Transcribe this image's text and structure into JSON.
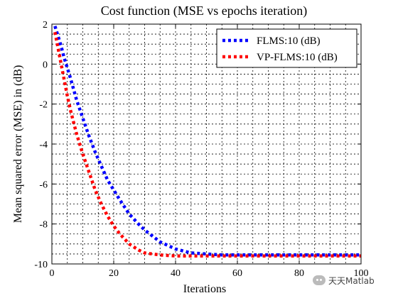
{
  "chart_data": {
    "type": "line",
    "title": "Cost function (MSE vs epochs iteration)",
    "xlabel": "Iterations",
    "ylabel": "Mean squared error (MSE) in (dB)",
    "xlim": [
      0,
      100
    ],
    "ylim": [
      -10,
      2
    ],
    "xticks": [
      "0",
      "20",
      "40",
      "60",
      "80",
      "100"
    ],
    "yticks": [
      "2",
      "0",
      "-2",
      "-4",
      "-6",
      "-8",
      "-10"
    ],
    "grid": true,
    "legend_position": "top-right",
    "series": [
      {
        "name": "FLMS:10 (dB)",
        "color": "#0000ff",
        "x": [
          1,
          2,
          3,
          4,
          5,
          6,
          8,
          10,
          12,
          14,
          16,
          18,
          20,
          22,
          25,
          28,
          30,
          35,
          40,
          45,
          50,
          55,
          60,
          70,
          80,
          90,
          100
        ],
        "y": [
          1.9,
          1.4,
          0.9,
          0.3,
          -0.2,
          -0.7,
          -1.8,
          -2.7,
          -3.6,
          -4.4,
          -5.1,
          -5.8,
          -6.3,
          -6.8,
          -7.5,
          -8.0,
          -8.3,
          -8.9,
          -9.25,
          -9.45,
          -9.5,
          -9.55,
          -9.55,
          -9.55,
          -9.55,
          -9.55,
          -9.55
        ]
      },
      {
        "name": "VP-FLMS:10 (dB)",
        "color": "#ff0000",
        "x": [
          1,
          2,
          3,
          4,
          5,
          6,
          8,
          10,
          12,
          14,
          16,
          18,
          20,
          22,
          25,
          28,
          30,
          35,
          40,
          45,
          50,
          55,
          60,
          70,
          80,
          90,
          100
        ],
        "y": [
          1.6,
          0.8,
          0.0,
          -0.8,
          -1.6,
          -2.3,
          -3.5,
          -4.5,
          -5.4,
          -6.3,
          -7.0,
          -7.6,
          -8.1,
          -8.5,
          -9.0,
          -9.3,
          -9.45,
          -9.55,
          -9.6,
          -9.6,
          -9.6,
          -9.6,
          -9.6,
          -9.6,
          -9.6,
          -9.6,
          -9.6
        ]
      }
    ]
  },
  "watermark": {
    "text": "天天Matlab",
    "icon": "wechat-icon"
  }
}
